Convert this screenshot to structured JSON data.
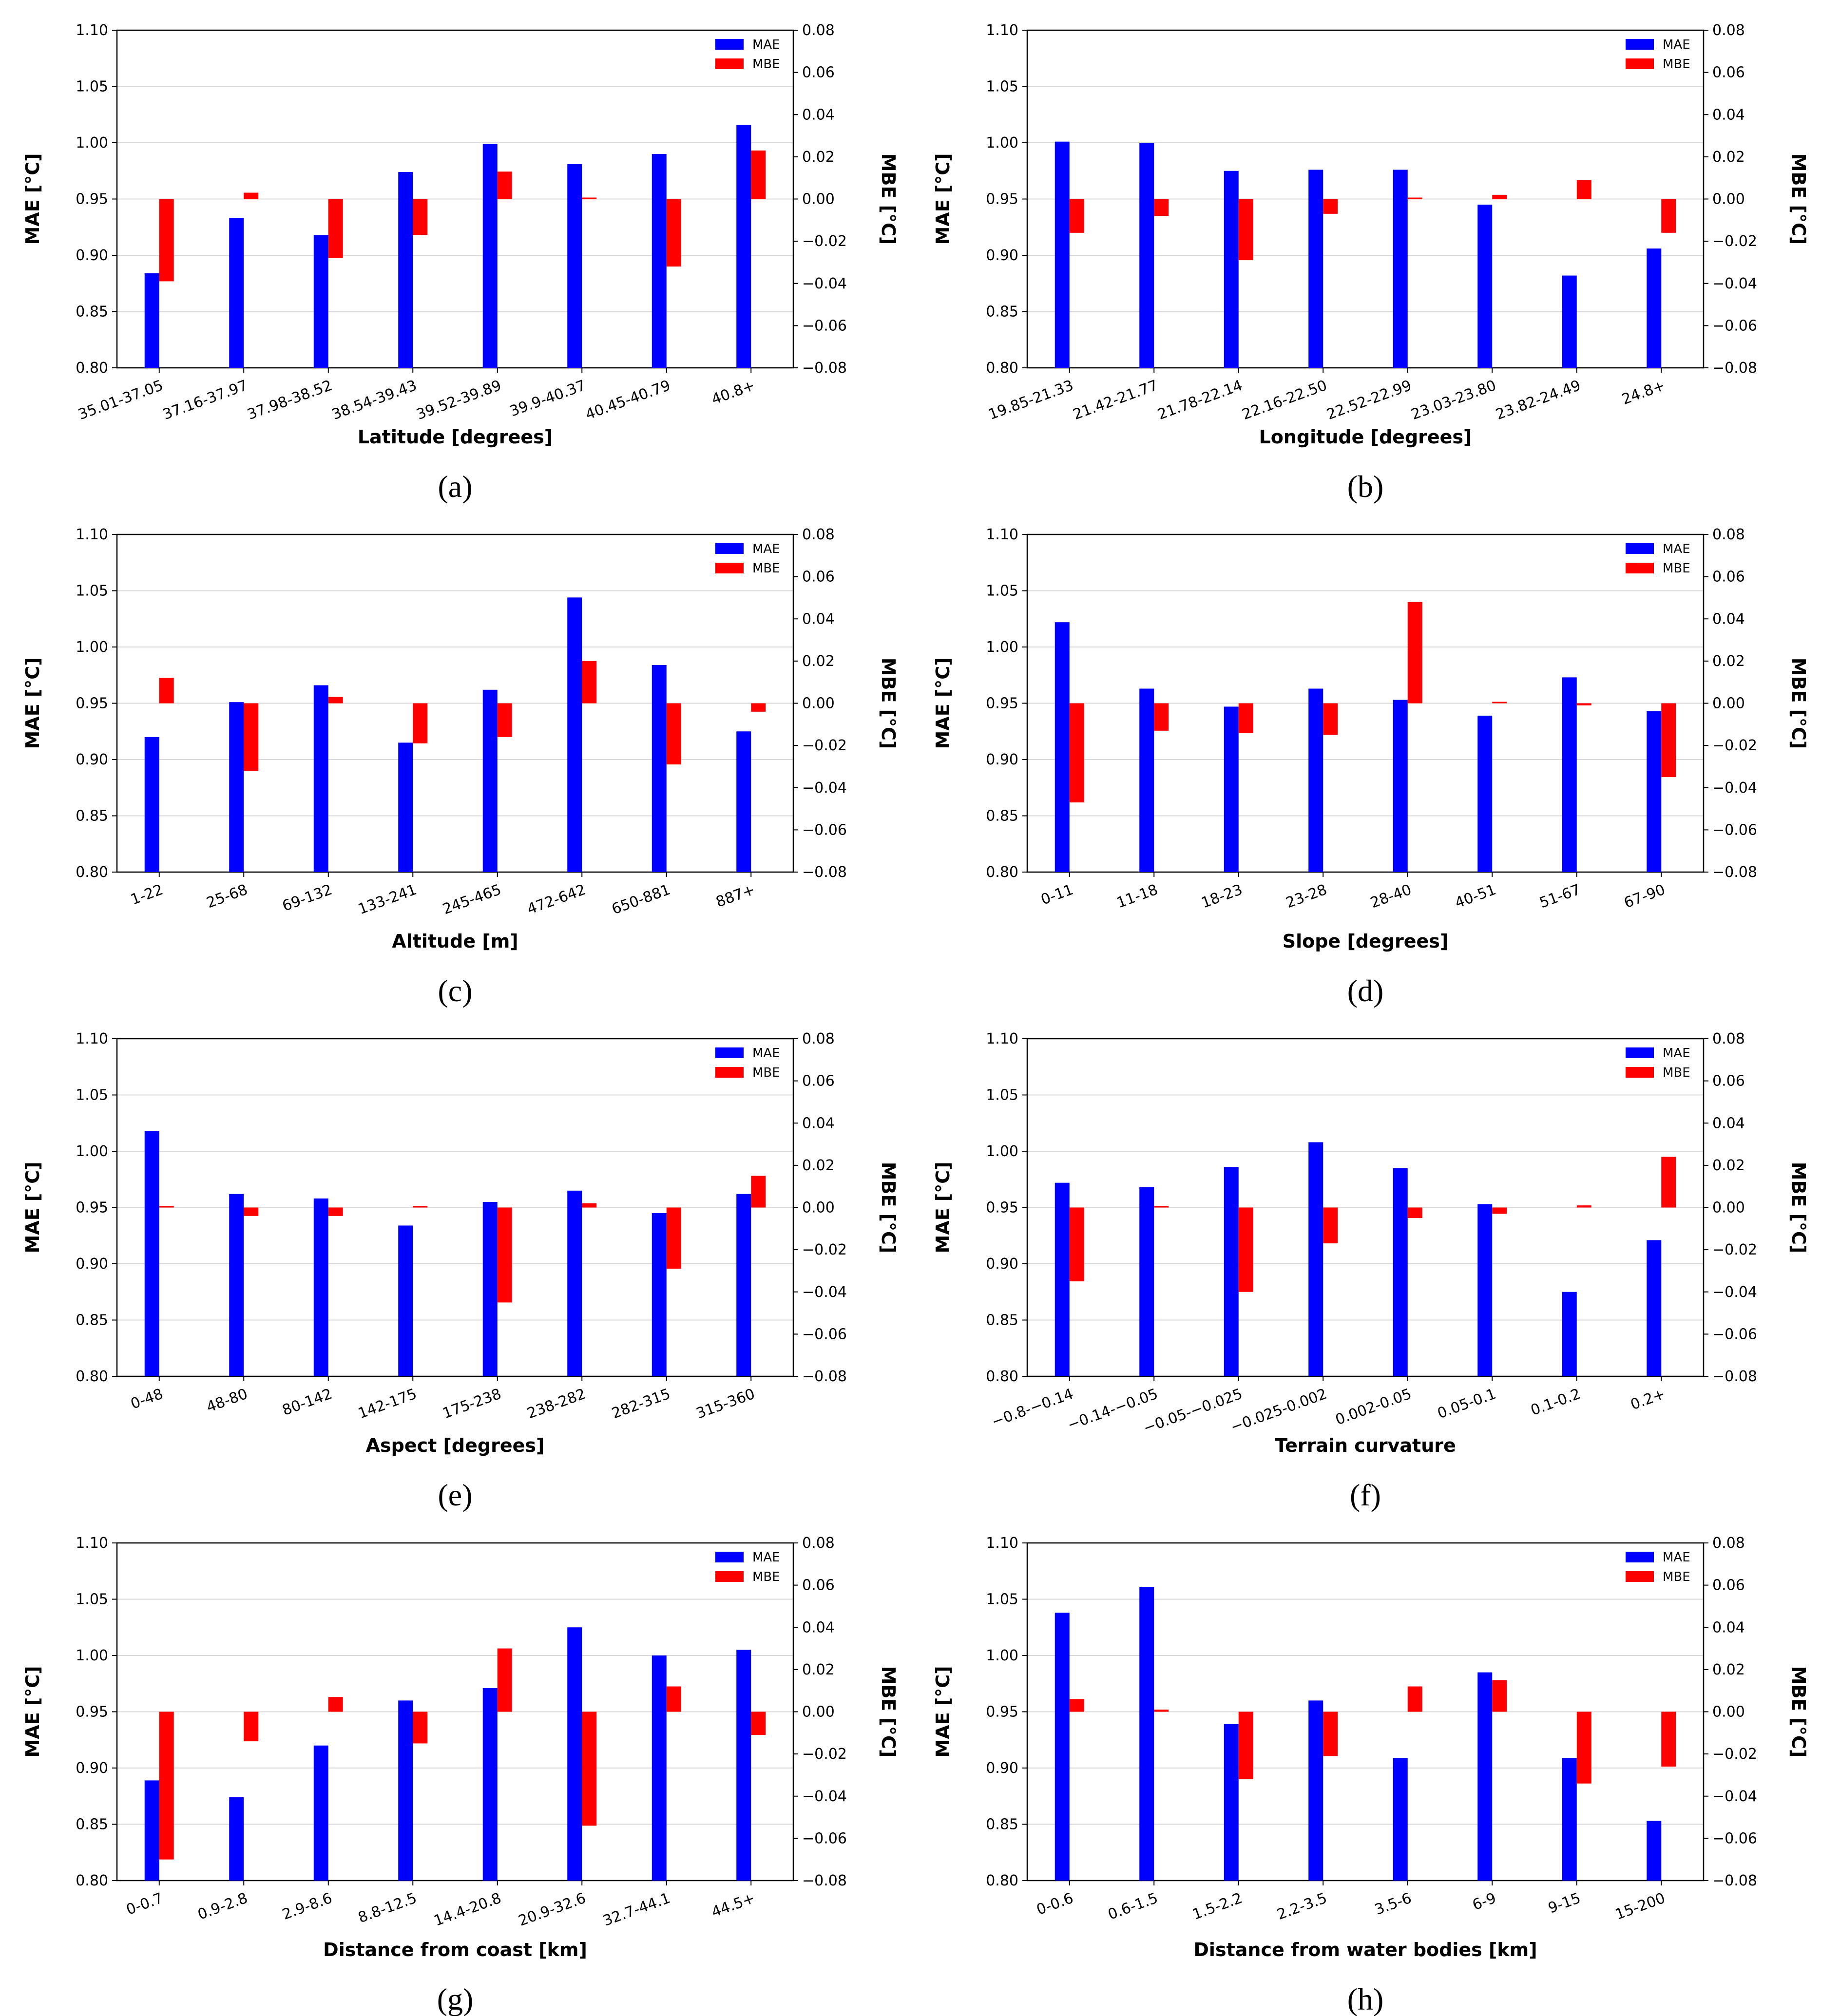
{
  "figure": {
    "colors": {
      "mae": "#0000ff",
      "mbe": "#ff0000",
      "grid": "#d9d9d9",
      "axis": "#000000"
    },
    "left_axis_label": "MAE [°C]",
    "right_axis_label": "MBE [°C]",
    "legend": [
      "MAE",
      "MBE"
    ]
  },
  "chart_data": [
    {
      "type": "bar",
      "caption": "(a)",
      "xlabel": "Latitude [degrees]",
      "ylabel": "MAE [°C]",
      "y2label": "MBE [°C]",
      "ylim": [
        0.8,
        1.1
      ],
      "y2lim": [
        -0.08,
        0.08
      ],
      "yticks": [
        "0.80",
        "0.85",
        "0.90",
        "0.95",
        "1.00",
        "1.05",
        "1.10"
      ],
      "y2ticks": [
        "−0.08",
        "−0.06",
        "−0.04",
        "−0.02",
        "0.00",
        "0.02",
        "0.04",
        "0.06",
        "0.08"
      ],
      "categories": [
        "35.01-37.05",
        "37.16-37.97",
        "37.98-38.52",
        "38.54-39.43",
        "39.52-39.89",
        "39.9-40.37",
        "40.45-40.79",
        "40.8+"
      ],
      "series": [
        {
          "name": "MAE",
          "axis": "left",
          "values": [
            0.884,
            0.933,
            0.918,
            0.974,
            0.999,
            0.981,
            0.99,
            1.016
          ]
        },
        {
          "name": "MBE",
          "axis": "right",
          "values": [
            -0.039,
            0.003,
            -0.028,
            -0.017,
            0.013,
            0.0,
            -0.032,
            0.023
          ]
        }
      ],
      "legend_position": "top-right"
    },
    {
      "type": "bar",
      "caption": "(b)",
      "xlabel": "Longitude [degrees]",
      "ylabel": "MAE [°C]",
      "y2label": "MBE [°C]",
      "ylim": [
        0.8,
        1.1
      ],
      "y2lim": [
        -0.08,
        0.08
      ],
      "yticks": [
        "0.80",
        "0.85",
        "0.90",
        "0.95",
        "1.00",
        "1.05",
        "1.10"
      ],
      "y2ticks": [
        "−0.08",
        "−0.06",
        "−0.04",
        "−0.02",
        "0.00",
        "0.02",
        "0.04",
        "0.06",
        "0.08"
      ],
      "categories": [
        "19.85-21.33",
        "21.42-21.77",
        "21.78-22.14",
        "22.16-22.50",
        "22.52-22.99",
        "23.03-23.80",
        "23.82-24.49",
        "24.8+"
      ],
      "series": [
        {
          "name": "MAE",
          "axis": "left",
          "values": [
            1.001,
            1.0,
            0.975,
            0.976,
            0.976,
            0.945,
            0.882,
            0.906
          ]
        },
        {
          "name": "MBE",
          "axis": "right",
          "values": [
            -0.016,
            -0.008,
            -0.029,
            -0.007,
            0.0,
            0.002,
            0.009,
            -0.016
          ]
        }
      ],
      "legend_position": "top-right"
    },
    {
      "type": "bar",
      "caption": "(c)",
      "xlabel": "Altitude [m]",
      "ylabel": "MAE [°C]",
      "y2label": "MBE [°C]",
      "ylim": [
        0.8,
        1.1
      ],
      "y2lim": [
        -0.08,
        0.08
      ],
      "yticks": [
        "0.80",
        "0.85",
        "0.90",
        "0.95",
        "1.00",
        "1.05",
        "1.10"
      ],
      "y2ticks": [
        "−0.08",
        "−0.06",
        "−0.04",
        "−0.02",
        "0.00",
        "0.02",
        "0.04",
        "0.06",
        "0.08"
      ],
      "categories": [
        "1-22",
        "25-68",
        "69-132",
        "133-241",
        "245-465",
        "472-642",
        "650-881",
        "887+"
      ],
      "series": [
        {
          "name": "MAE",
          "axis": "left",
          "values": [
            0.92,
            0.951,
            0.966,
            0.915,
            0.962,
            1.044,
            0.984,
            0.925
          ]
        },
        {
          "name": "MBE",
          "axis": "right",
          "values": [
            0.012,
            -0.032,
            0.003,
            -0.019,
            -0.016,
            0.02,
            -0.029,
            -0.004
          ]
        }
      ],
      "legend_position": "top-right"
    },
    {
      "type": "bar",
      "caption": "(d)",
      "xlabel": "Slope [degrees]",
      "ylabel": "MAE [°C]",
      "y2label": "MBE [°C]",
      "ylim": [
        0.8,
        1.1
      ],
      "y2lim": [
        -0.08,
        0.08
      ],
      "yticks": [
        "0.80",
        "0.85",
        "0.90",
        "0.95",
        "1.00",
        "1.05",
        "1.10"
      ],
      "y2ticks": [
        "−0.08",
        "−0.06",
        "−0.04",
        "−0.02",
        "0.00",
        "0.02",
        "0.04",
        "0.06",
        "0.08"
      ],
      "categories": [
        "0-11",
        "11-18",
        "18-23",
        "23-28",
        "28-40",
        "40-51",
        "51-67",
        "67-90"
      ],
      "series": [
        {
          "name": "MAE",
          "axis": "left",
          "values": [
            1.022,
            0.963,
            0.947,
            0.963,
            0.953,
            0.939,
            0.973,
            0.943
          ]
        },
        {
          "name": "MBE",
          "axis": "right",
          "values": [
            -0.047,
            -0.013,
            -0.014,
            -0.015,
            0.048,
            0.0,
            -0.001,
            -0.035
          ]
        }
      ],
      "legend_position": "top-right"
    },
    {
      "type": "bar",
      "caption": "(e)",
      "xlabel": "Aspect [degrees]",
      "ylabel": "MAE [°C]",
      "y2label": "MBE [°C]",
      "ylim": [
        0.8,
        1.1
      ],
      "y2lim": [
        -0.08,
        0.08
      ],
      "yticks": [
        "0.80",
        "0.85",
        "0.90",
        "0.95",
        "1.00",
        "1.05",
        "1.10"
      ],
      "y2ticks": [
        "−0.08",
        "−0.06",
        "−0.04",
        "−0.02",
        "0.00",
        "0.02",
        "0.04",
        "0.06",
        "0.08"
      ],
      "categories": [
        "0-48",
        "48-80",
        "80-142",
        "142-175",
        "175-238",
        "238-282",
        "282-315",
        "315-360"
      ],
      "series": [
        {
          "name": "MAE",
          "axis": "left",
          "values": [
            1.018,
            0.962,
            0.958,
            0.934,
            0.955,
            0.965,
            0.945,
            0.962
          ]
        },
        {
          "name": "MBE",
          "axis": "right",
          "values": [
            0.0,
            -0.004,
            -0.004,
            0.0,
            -0.045,
            0.002,
            -0.029,
            0.015
          ]
        }
      ],
      "legend_position": "top-right"
    },
    {
      "type": "bar",
      "caption": "(f)",
      "xlabel": "Terrain curvature",
      "ylabel": "MAE [°C]",
      "y2label": "MBE [°C]",
      "ylim": [
        0.8,
        1.1
      ],
      "y2lim": [
        -0.08,
        0.08
      ],
      "yticks": [
        "0.80",
        "0.85",
        "0.90",
        "0.95",
        "1.00",
        "1.05",
        "1.10"
      ],
      "y2ticks": [
        "−0.08",
        "−0.06",
        "−0.04",
        "−0.02",
        "0.00",
        "0.02",
        "0.04",
        "0.06",
        "0.08"
      ],
      "categories": [
        "−0.8-−0.14",
        "−0.14-−0.05",
        "−0.05-−0.025",
        "−0.025-0.002",
        "0.002-0.05",
        "0.05-0.1",
        "0.1-0.2",
        "0.2+"
      ],
      "series": [
        {
          "name": "MAE",
          "axis": "left",
          "values": [
            0.972,
            0.968,
            0.986,
            1.008,
            0.985,
            0.953,
            0.875,
            0.921
          ]
        },
        {
          "name": "MBE",
          "axis": "right",
          "values": [
            -0.035,
            0.0,
            -0.04,
            -0.017,
            -0.005,
            -0.003,
            0.001,
            0.024
          ]
        }
      ],
      "legend_position": "top-right"
    },
    {
      "type": "bar",
      "caption": "(g)",
      "xlabel": "Distance from coast [km]",
      "ylabel": "MAE [°C]",
      "y2label": "MBE [°C]",
      "ylim": [
        0.8,
        1.1
      ],
      "y2lim": [
        -0.08,
        0.08
      ],
      "yticks": [
        "0.80",
        "0.85",
        "0.90",
        "0.95",
        "1.00",
        "1.05",
        "1.10"
      ],
      "y2ticks": [
        "−0.08",
        "−0.06",
        "−0.04",
        "−0.02",
        "0.00",
        "0.02",
        "0.04",
        "0.06",
        "0.08"
      ],
      "categories": [
        "0-0.7",
        "0.9-2.8",
        "2.9-8.6",
        "8.8-12.5",
        "14.4-20.8",
        "20.9-32.6",
        "32.7-44.1",
        "44.5+"
      ],
      "series": [
        {
          "name": "MAE",
          "axis": "left",
          "values": [
            0.889,
            0.874,
            0.92,
            0.96,
            0.971,
            1.025,
            1.0,
            1.005
          ]
        },
        {
          "name": "MBE",
          "axis": "right",
          "values": [
            -0.07,
            -0.014,
            0.007,
            -0.015,
            0.03,
            -0.054,
            0.012,
            -0.011
          ]
        }
      ],
      "legend_position": "top-right"
    },
    {
      "type": "bar",
      "caption": "(h)",
      "xlabel": "Distance from water bodies [km]",
      "ylabel": "MAE [°C]",
      "y2label": "MBE [°C]",
      "ylim": [
        0.8,
        1.1
      ],
      "y2lim": [
        -0.08,
        0.08
      ],
      "yticks": [
        "0.80",
        "0.85",
        "0.90",
        "0.95",
        "1.00",
        "1.05",
        "1.10"
      ],
      "y2ticks": [
        "−0.08",
        "−0.06",
        "−0.04",
        "−0.02",
        "0.00",
        "0.02",
        "0.04",
        "0.06",
        "0.08"
      ],
      "categories": [
        "0-0.6",
        "0.6-1.5",
        "1.5-2.2",
        "2.2-3.5",
        "3.5-6",
        "6-9",
        "9-15",
        "15-200"
      ],
      "series": [
        {
          "name": "MAE",
          "axis": "left",
          "values": [
            1.038,
            1.061,
            0.939,
            0.96,
            0.909,
            0.985,
            0.909,
            0.853
          ]
        },
        {
          "name": "MBE",
          "axis": "right",
          "values": [
            0.006,
            0.001,
            -0.032,
            -0.021,
            0.012,
            0.015,
            -0.034,
            -0.026
          ]
        }
      ],
      "legend_position": "top-right"
    }
  ]
}
